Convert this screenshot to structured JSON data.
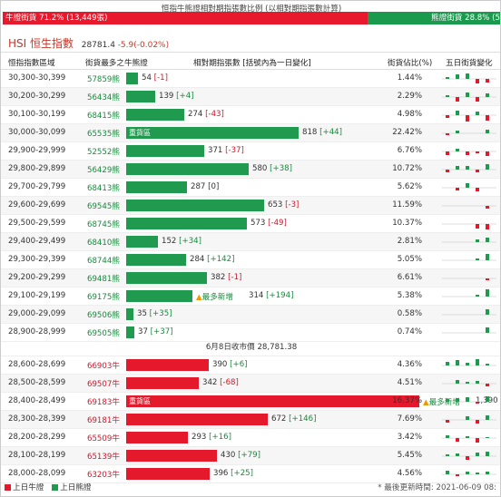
{
  "header": {
    "title": "恒指牛熊證相對期指張數比例 (以相對期指張數計算)",
    "bull_label": "牛證街貨 71.2% (13,449張)",
    "bear_label": "熊證街貨 28.8% (5,436張)"
  },
  "index": {
    "name": "HSI 恒生指數",
    "price": "28781.4",
    "change": "-5.9(-0.02%)"
  },
  "columns": {
    "range": "恒指指數區域",
    "code": "街貨最多之牛熊證",
    "qty": "相對期指張數 [括號內為一日變化]",
    "pct": "街貨佔比(%)",
    "trend": "五日街貨變化"
  },
  "markers": {
    "heavy": "重貨區",
    "newest": "最多新增",
    "triangle": "▲"
  },
  "bear_rows": [
    {
      "range": "30,300-30,399",
      "code": "57859熊",
      "qty": "54",
      "chg": "[-1]",
      "pct": "1.44%"
    },
    {
      "range": "30,200-30,299",
      "code": "56434熊",
      "qty": "139",
      "chg": "[+4]",
      "pct": "2.29%"
    },
    {
      "range": "30,100-30,199",
      "code": "68415熊",
      "qty": "274",
      "chg": "[-43]",
      "pct": "4.98%"
    },
    {
      "range": "30,000-30,099",
      "code": "65535熊",
      "qty": "818",
      "chg": "[+44]",
      "pct": "22.42%"
    },
    {
      "range": "29,900-29,999",
      "code": "52552熊",
      "qty": "371",
      "chg": "[-37]",
      "pct": "6.76%"
    },
    {
      "range": "29,800-29,899",
      "code": "56429熊",
      "qty": "580",
      "chg": "[+38]",
      "pct": "10.72%"
    },
    {
      "range": "29,700-29,799",
      "code": "68413熊",
      "qty": "287",
      "chg": "[0]",
      "pct": "5.62%"
    },
    {
      "range": "29,600-29,699",
      "code": "69545熊",
      "qty": "653",
      "chg": "[-3]",
      "pct": "11.59%"
    },
    {
      "range": "29,500-29,599",
      "code": "68745熊",
      "qty": "573",
      "chg": "[-49]",
      "pct": "10.37%"
    },
    {
      "range": "29,400-29,499",
      "code": "68410熊",
      "qty": "152",
      "chg": "[+34]",
      "pct": "2.81%"
    },
    {
      "range": "29,300-29,399",
      "code": "68744熊",
      "qty": "284",
      "chg": "[+142]",
      "pct": "5.05%"
    },
    {
      "range": "29,200-29,299",
      "code": "69481熊",
      "qty": "382",
      "chg": "[-1]",
      "pct": "6.61%"
    },
    {
      "range": "29,100-29,199",
      "code": "69175熊",
      "qty": "314",
      "chg": "[+194]",
      "pct": "5.38%"
    },
    {
      "range": "29,000-29,099",
      "code": "69506熊",
      "qty": "35",
      "chg": "[+35]",
      "pct": "0.58%"
    },
    {
      "range": "28,900-28,999",
      "code": "69505熊",
      "qty": "37",
      "chg": "[+37]",
      "pct": "0.74%"
    }
  ],
  "close_label": "6月8日收市價 28,781.38",
  "bull_rows": [
    {
      "range": "28,600-28,699",
      "code": "66903牛",
      "qty": "390",
      "chg": "[+6]",
      "pct": "4.36%"
    },
    {
      "range": "28,500-28,599",
      "code": "69507牛",
      "qty": "342",
      "chg": "[-68]",
      "pct": "4.51%"
    },
    {
      "range": "28,400-28,499",
      "code": "69183牛",
      "qty": "1,390",
      "chg": "[+262]",
      "pct": "16.37%"
    },
    {
      "range": "28,300-28,399",
      "code": "69181牛",
      "qty": "672",
      "chg": "[+146]",
      "pct": "7.69%"
    },
    {
      "range": "28,200-28,299",
      "code": "65509牛",
      "qty": "293",
      "chg": "[+16]",
      "pct": "3.42%"
    },
    {
      "range": "28,100-28,199",
      "code": "65139牛",
      "qty": "430",
      "chg": "[+79]",
      "pct": "5.45%"
    },
    {
      "range": "28,000-28,099",
      "code": "63203牛",
      "qty": "396",
      "chg": "[+25]",
      "pct": "4.56%"
    }
  ],
  "legend": {
    "bull": "上日牛證",
    "bear": "上日熊證"
  },
  "updated": "* 最後更新時間: 2021-06-09 08:",
  "colors": {
    "bull": "#e5192c",
    "bear": "#1f9a4e"
  },
  "trends": {
    "bear": [
      [
        2,
        5,
        6,
        -5,
        -4
      ],
      [
        2,
        -5,
        5,
        -5,
        4
      ],
      [
        -3,
        5,
        -7,
        4,
        -6
      ],
      [
        -2,
        3,
        0,
        0,
        4
      ],
      [
        -4,
        3,
        -4,
        -2,
        -5
      ],
      [
        -3,
        4,
        4,
        -3,
        6
      ],
      [
        0,
        -3,
        5,
        -4,
        0
      ],
      [
        0,
        0,
        0,
        0,
        -3
      ],
      [
        0,
        0,
        0,
        -5,
        -6
      ],
      [
        0,
        0,
        0,
        3,
        5
      ],
      [
        0,
        0,
        0,
        2,
        7
      ],
      [
        0,
        0,
        0,
        0,
        -2
      ],
      [
        0,
        0,
        0,
        2,
        8
      ],
      [
        0,
        0,
        0,
        0,
        6
      ],
      [
        0,
        0,
        0,
        0,
        6
      ]
    ],
    "bull": [
      [
        4,
        6,
        3,
        7,
        2
      ],
      [
        0,
        4,
        2,
        3,
        -3
      ],
      [
        3,
        4,
        5,
        -2,
        6
      ],
      [
        -3,
        0,
        4,
        -4,
        5
      ],
      [
        3,
        -4,
        2,
        -5,
        1
      ],
      [
        2,
        3,
        -4,
        4,
        5
      ],
      [
        4,
        -2,
        3,
        2,
        3
      ]
    ]
  }
}
